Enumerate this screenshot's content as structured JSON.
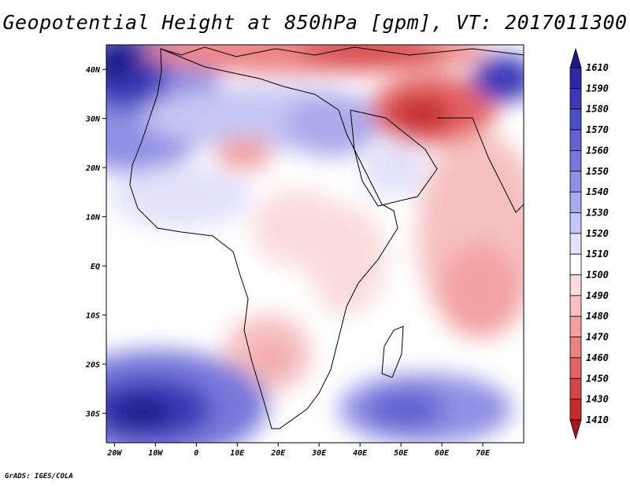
{
  "chart_data": {
    "type": "heatmap",
    "title": "Geopotential Height at 850hPa [gpm], VT: 2017011300",
    "variable": "Geopotential Height",
    "level": "850hPa",
    "units": "gpm",
    "valid_time": "2017011300",
    "lon_range": [
      -22,
      80
    ],
    "lat_range": [
      -36,
      45
    ],
    "x_ticks": [
      "20W",
      "10W",
      "0",
      "10E",
      "20E",
      "30E",
      "40E",
      "50E",
      "60E",
      "70E"
    ],
    "x_tick_values": [
      -20,
      -10,
      0,
      10,
      20,
      30,
      40,
      50,
      60,
      70
    ],
    "y_ticks": [
      "40N",
      "30N",
      "20N",
      "10N",
      "EQ",
      "10S",
      "20S",
      "30S"
    ],
    "y_tick_values": [
      40,
      30,
      20,
      10,
      0,
      -10,
      -20,
      -30
    ],
    "colorbar_levels": [
      "1610",
      "1590",
      "1580",
      "1570",
      "1560",
      "1550",
      "1540",
      "1530",
      "1520",
      "1510",
      "1500",
      "1490",
      "1480",
      "1470",
      "1460",
      "1450",
      "1430",
      "1410"
    ],
    "colorbar_colors": [
      "#1c1a8a",
      "#2a29a8",
      "#3a3ab8",
      "#4e4ec6",
      "#6262d2",
      "#7878dc",
      "#9090e4",
      "#aaaaec",
      "#c6c6f4",
      "#e2e2fa",
      "#ffffff",
      "#fadcdc",
      "#f6c0c0",
      "#f2a2a2",
      "#ec8484",
      "#e46464",
      "#d84444",
      "#c42a2a",
      "#a81818"
    ],
    "features": [
      {
        "lon": -18,
        "lat": 42,
        "value": 1610
      },
      {
        "lon": -12,
        "lat": -32,
        "value": 1590
      },
      {
        "lon": 48,
        "lat": -31,
        "value": 1560
      },
      {
        "lon": 42,
        "lat": 28,
        "value": 1530
      },
      {
        "lon": 55,
        "lat": 31,
        "value": 1450
      },
      {
        "lon": 45,
        "lat": 43,
        "value": 1460
      },
      {
        "lon": 8,
        "lat": 22,
        "value": 1490
      },
      {
        "lon": 19,
        "lat": -20,
        "value": 1480
      },
      {
        "lon": 62,
        "lat": -10,
        "value": 1490
      }
    ]
  },
  "footer": "GrADS: IGES/COLA"
}
